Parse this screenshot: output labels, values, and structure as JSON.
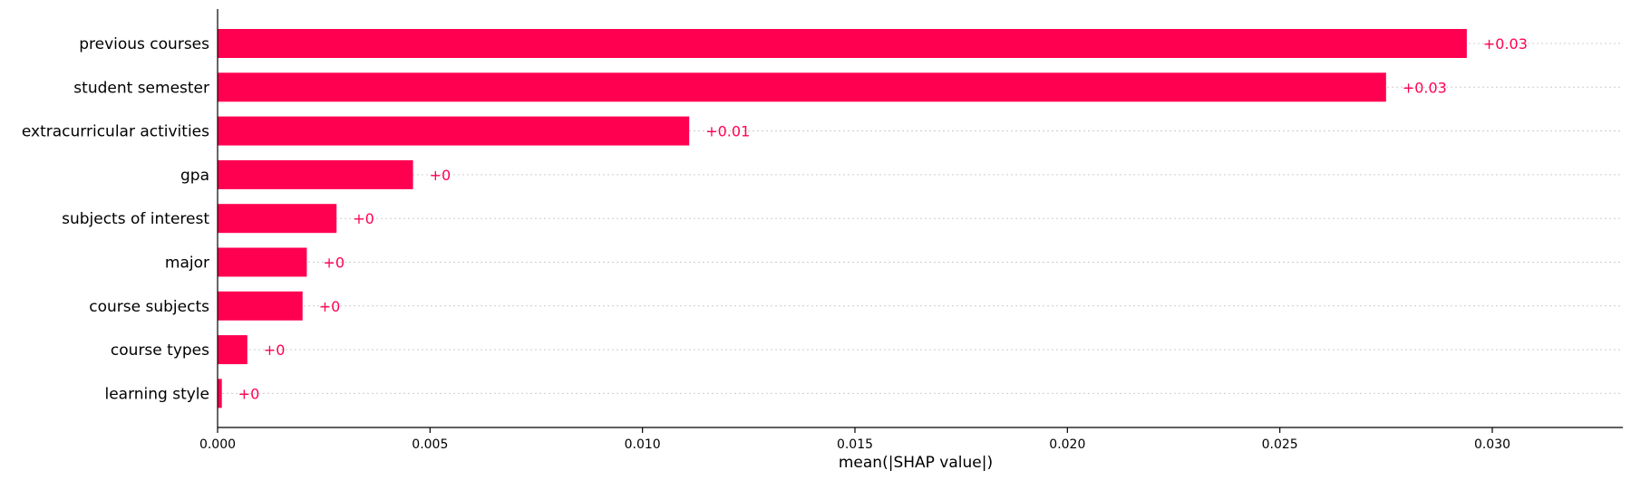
{
  "chart_data": {
    "type": "bar",
    "orientation": "horizontal",
    "categories": [
      "previous courses",
      "student semester",
      "extracurricular activities",
      "gpa",
      "subjects of interest",
      "major",
      "course subjects",
      "course types",
      "learning style"
    ],
    "values": [
      0.0294,
      0.0275,
      0.0111,
      0.0046,
      0.0028,
      0.0021,
      0.002,
      0.0007,
      0.0001
    ],
    "value_labels": [
      "+0.03",
      "+0.03",
      "+0.01",
      "+0",
      "+0",
      "+0",
      "+0",
      "+0",
      "+0"
    ],
    "xlabel": "mean(|SHAP value|)",
    "ylabel": "",
    "xlim": [
      0,
      0.0324
    ],
    "xticks": [
      0.0,
      0.005,
      0.01,
      0.015,
      0.02,
      0.025,
      0.03
    ],
    "xtick_labels": [
      "0.000",
      "0.005",
      "0.010",
      "0.015",
      "0.020",
      "0.025",
      "0.030"
    ],
    "grid": "horizontal dotted",
    "bar_color": "#ff0051",
    "label_color": "#ff0051"
  }
}
